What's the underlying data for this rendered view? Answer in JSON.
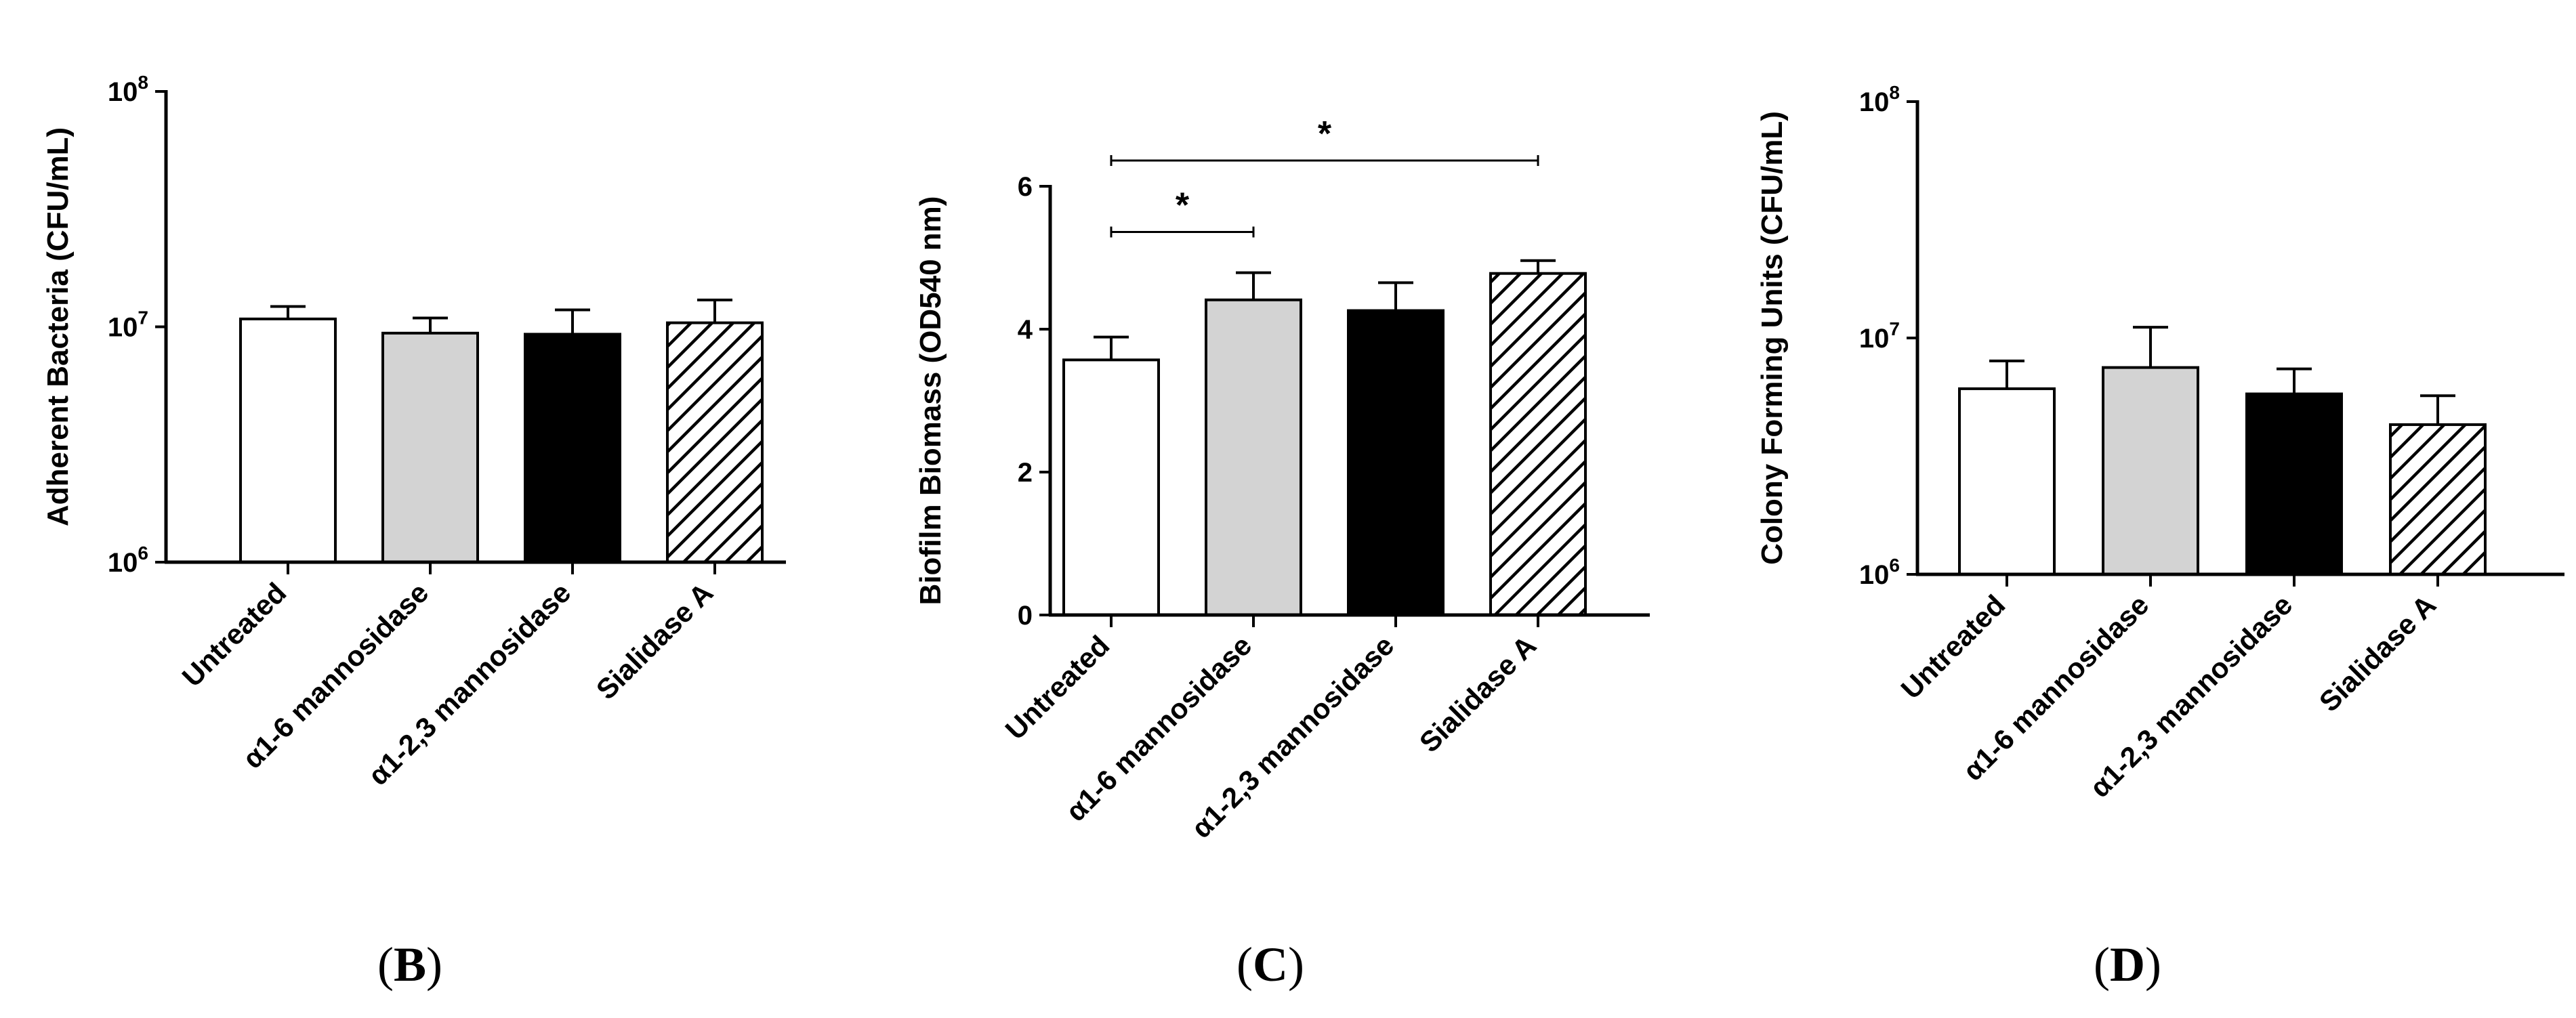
{
  "chart_data": [
    {
      "type": "bar",
      "panel": "B",
      "yscale": "log",
      "ylabel": "Adherent Bacteria (CFU/mL)",
      "xlabel": "",
      "ylim": [
        1000000,
        100000000
      ],
      "yticks": [
        {
          "value": 1000000,
          "base": "10",
          "exp": "6"
        },
        {
          "value": 10000000,
          "base": "10",
          "exp": "7"
        },
        {
          "value": 100000000,
          "base": "10",
          "exp": "8"
        }
      ],
      "categories": [
        "Untreated",
        "α1-6 mannosidase",
        "α1-2,3 mannosidase",
        "Sialidase A"
      ],
      "values": [
        10800000,
        9400000,
        9300000,
        10400000
      ],
      "errors_upper": [
        12200000,
        10900000,
        11800000,
        13000000
      ],
      "fills": [
        "white",
        "lightgray",
        "black",
        "hatched"
      ],
      "significance": []
    },
    {
      "type": "bar",
      "panel": "C",
      "yscale": "linear",
      "ylabel": "Biofilm  Biomass (OD540 nm)",
      "xlabel": "",
      "ylim": [
        0,
        6
      ],
      "yticks": [
        {
          "value": 0,
          "label": "0"
        },
        {
          "value": 2,
          "label": "2"
        },
        {
          "value": 4,
          "label": "4"
        },
        {
          "value": 6,
          "label": "6"
        }
      ],
      "categories": [
        "Untreated",
        "α1-6 mannosidase",
        "α1-2,3 mannosidase",
        "Sialidase A"
      ],
      "values": [
        3.57,
        4.41,
        4.26,
        4.78
      ],
      "errors_upper": [
        3.89,
        4.79,
        4.65,
        4.96
      ],
      "fills": [
        "white",
        "lightgray",
        "black",
        "hatched"
      ],
      "significance": [
        {
          "from": 0,
          "to": 1,
          "y": 5.36,
          "label": "*"
        },
        {
          "from": 0,
          "to": 3,
          "y": 6.36,
          "label": "*"
        }
      ]
    },
    {
      "type": "bar",
      "panel": "D",
      "yscale": "log",
      "ylabel": "Colony Forming Units (CFU/mL)",
      "xlabel": "",
      "ylim": [
        1000000,
        100000000
      ],
      "yticks": [
        {
          "value": 1000000,
          "base": "10",
          "exp": "6"
        },
        {
          "value": 10000000,
          "base": "10",
          "exp": "7"
        },
        {
          "value": 100000000,
          "base": "10",
          "exp": "8"
        }
      ],
      "categories": [
        "Untreated",
        "α1-6 mannosidase",
        "α1-2,3 mannosidase",
        "Sialidase A"
      ],
      "values": [
        6100000,
        7500000,
        5800000,
        4300000
      ],
      "errors_upper": [
        8000000,
        11100000,
        7400000,
        5700000
      ],
      "fills": [
        "white",
        "lightgray",
        "black",
        "hatched"
      ],
      "significance": []
    }
  ],
  "panel_labels": [
    {
      "prefix": "(",
      "letter": "B",
      "suffix": ")"
    },
    {
      "prefix": "(",
      "letter": "C",
      "suffix": ")"
    },
    {
      "prefix": "(",
      "letter": "D",
      "suffix": ")"
    }
  ]
}
